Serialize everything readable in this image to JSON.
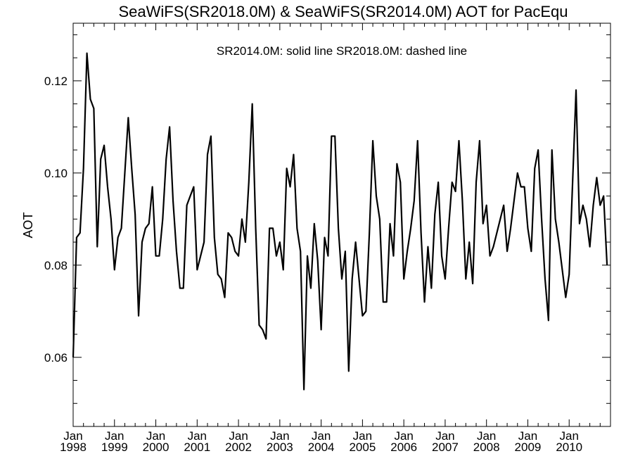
{
  "chart_data": {
    "type": "line",
    "title": "SeaWiFS(SR2018.0M) & SeaWiFS(SR2014.0M)  AOT for PacEqu",
    "annotation": "SR2014.0M: solid line   SR2018.0M: dashed line",
    "ylabel": "AOT",
    "xlabel": "",
    "x_start": "1998-01",
    "x_end": "2011-01",
    "ylim": [
      0.045,
      0.1325
    ],
    "yticks": [
      0.06,
      0.08,
      0.1,
      0.12
    ],
    "ytick_labels": [
      "0.06",
      "0.08",
      "0.10",
      "0.12"
    ],
    "xticks": [
      {
        "month": "Jan",
        "year": "1998"
      },
      {
        "month": "Jan",
        "year": "1999"
      },
      {
        "month": "Jan",
        "year": "2000"
      },
      {
        "month": "Jan",
        "year": "2001"
      },
      {
        "month": "Jan",
        "year": "2002"
      },
      {
        "month": "Jan",
        "year": "2003"
      },
      {
        "month": "Jan",
        "year": "2004"
      },
      {
        "month": "Jan",
        "year": "2005"
      },
      {
        "month": "Jan",
        "year": "2006"
      },
      {
        "month": "Jan",
        "year": "2007"
      },
      {
        "month": "Jan",
        "year": "2008"
      },
      {
        "month": "Jan",
        "year": "2009"
      },
      {
        "month": "Jan",
        "year": "2010"
      }
    ],
    "grid": false,
    "series": [
      {
        "color": "#000000",
        "x": [
          "1998-01",
          "1998-02",
          "1998-03",
          "1998-04",
          "1998-05",
          "1998-06",
          "1998-07",
          "1998-08",
          "1998-09",
          "1998-10",
          "1998-11",
          "1998-12",
          "1999-01",
          "1999-02",
          "1999-03",
          "1999-04",
          "1999-05",
          "1999-06",
          "1999-07",
          "1999-08",
          "1999-09",
          "1999-10",
          "1999-11",
          "1999-12",
          "2000-01",
          "2000-02",
          "2000-03",
          "2000-04",
          "2000-05",
          "2000-06",
          "2000-07",
          "2000-08",
          "2000-09",
          "2000-10",
          "2000-11",
          "2000-12",
          "2001-01",
          "2001-02",
          "2001-03",
          "2001-04",
          "2001-05",
          "2001-06",
          "2001-07",
          "2001-08",
          "2001-09",
          "2001-10",
          "2001-11",
          "2001-12",
          "2002-01",
          "2002-02",
          "2002-03",
          "2002-04",
          "2002-05",
          "2002-06",
          "2002-07",
          "2002-08",
          "2002-09",
          "2002-10",
          "2002-11",
          "2002-12",
          "2003-01",
          "2003-02",
          "2003-03",
          "2003-04",
          "2003-05",
          "2003-06",
          "2003-07",
          "2003-08",
          "2003-09",
          "2003-10",
          "2003-11",
          "2003-12",
          "2004-01",
          "2004-02",
          "2004-03",
          "2004-04",
          "2004-05",
          "2004-06",
          "2004-07",
          "2004-08",
          "2004-09",
          "2004-10",
          "2004-11",
          "2004-12",
          "2005-01",
          "2005-02",
          "2005-03",
          "2005-04",
          "2005-05",
          "2005-06",
          "2005-07",
          "2005-08",
          "2005-09",
          "2005-10",
          "2005-11",
          "2005-12",
          "2006-01",
          "2006-02",
          "2006-03",
          "2006-04",
          "2006-05",
          "2006-06",
          "2006-07",
          "2006-08",
          "2006-09",
          "2006-10",
          "2006-11",
          "2006-12",
          "2007-01",
          "2007-02",
          "2007-03",
          "2007-04",
          "2007-05",
          "2007-06",
          "2007-07",
          "2007-08",
          "2007-09",
          "2007-10",
          "2007-11",
          "2007-12",
          "2008-01",
          "2008-02",
          "2008-03",
          "2008-04",
          "2008-05",
          "2008-06",
          "2008-07",
          "2008-08",
          "2008-09",
          "2008-10",
          "2008-11",
          "2008-12",
          "2009-01",
          "2009-02",
          "2009-03",
          "2009-04",
          "2009-05",
          "2009-06",
          "2009-07",
          "2009-08",
          "2009-09",
          "2009-10",
          "2009-11",
          "2009-12",
          "2010-01",
          "2010-02",
          "2010-03",
          "2010-04",
          "2010-05",
          "2010-06",
          "2010-07",
          "2010-08",
          "2010-09",
          "2010-10",
          "2010-11",
          "2010-12"
        ],
        "values": [
          0.06,
          0.086,
          0.087,
          0.101,
          0.126,
          0.116,
          0.114,
          0.084,
          0.103,
          0.106,
          0.097,
          0.09,
          0.079,
          0.086,
          0.088,
          0.1,
          0.112,
          0.101,
          0.091,
          0.069,
          0.085,
          0.088,
          0.089,
          0.097,
          0.082,
          0.082,
          0.09,
          0.103,
          0.11,
          0.094,
          0.083,
          0.075,
          0.075,
          0.093,
          0.095,
          0.097,
          0.079,
          0.082,
          0.085,
          0.104,
          0.108,
          0.086,
          0.078,
          0.077,
          0.073,
          0.087,
          0.086,
          0.083,
          0.082,
          0.09,
          0.085,
          0.098,
          0.115,
          0.088,
          0.067,
          0.066,
          0.064,
          0.088,
          0.088,
          0.082,
          0.085,
          0.079,
          0.101,
          0.097,
          0.104,
          0.088,
          0.083,
          0.053,
          0.082,
          0.075,
          0.089,
          0.081,
          0.066,
          0.086,
          0.082,
          0.108,
          0.108,
          0.088,
          0.077,
          0.083,
          0.057,
          0.077,
          0.085,
          0.077,
          0.069,
          0.07,
          0.087,
          0.107,
          0.095,
          0.09,
          0.072,
          0.072,
          0.089,
          0.082,
          0.102,
          0.098,
          0.077,
          0.083,
          0.088,
          0.094,
          0.107,
          0.087,
          0.072,
          0.084,
          0.075,
          0.091,
          0.098,
          0.082,
          0.077,
          0.088,
          0.098,
          0.096,
          0.107,
          0.094,
          0.077,
          0.085,
          0.076,
          0.098,
          0.107,
          0.089,
          0.093,
          0.082,
          0.084,
          0.087,
          0.09,
          0.093,
          0.083,
          0.088,
          0.094,
          0.1,
          0.097,
          0.097,
          0.088,
          0.083,
          0.101,
          0.105,
          0.09,
          0.077,
          0.068,
          0.105,
          0.09,
          0.085,
          0.079,
          0.073,
          0.078,
          0.098,
          0.118,
          0.089,
          0.093,
          0.09,
          0.084,
          0.093,
          0.099,
          0.093,
          0.095,
          0.08
        ]
      }
    ]
  }
}
